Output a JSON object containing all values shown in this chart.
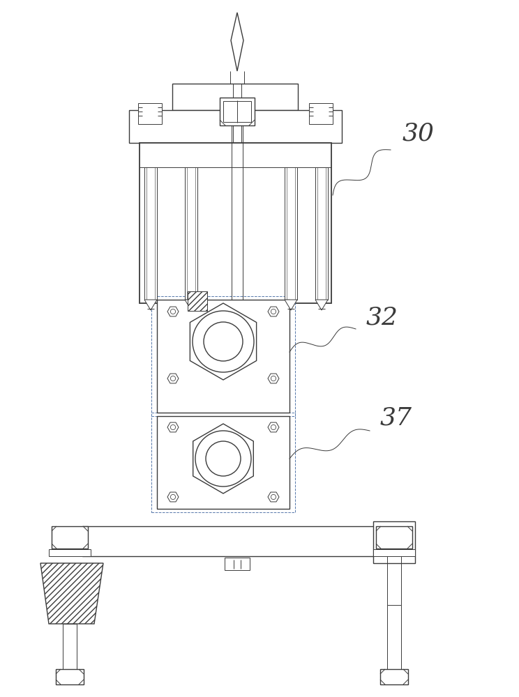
{
  "bg_color": "#ffffff",
  "line_color": "#3a3a3a",
  "label_color": "#3a3a3a",
  "labels": [
    "30",
    "32",
    "37"
  ],
  "label_fontsize": 26,
  "fig_width": 7.44,
  "fig_height": 10.0,
  "dpi": 100
}
